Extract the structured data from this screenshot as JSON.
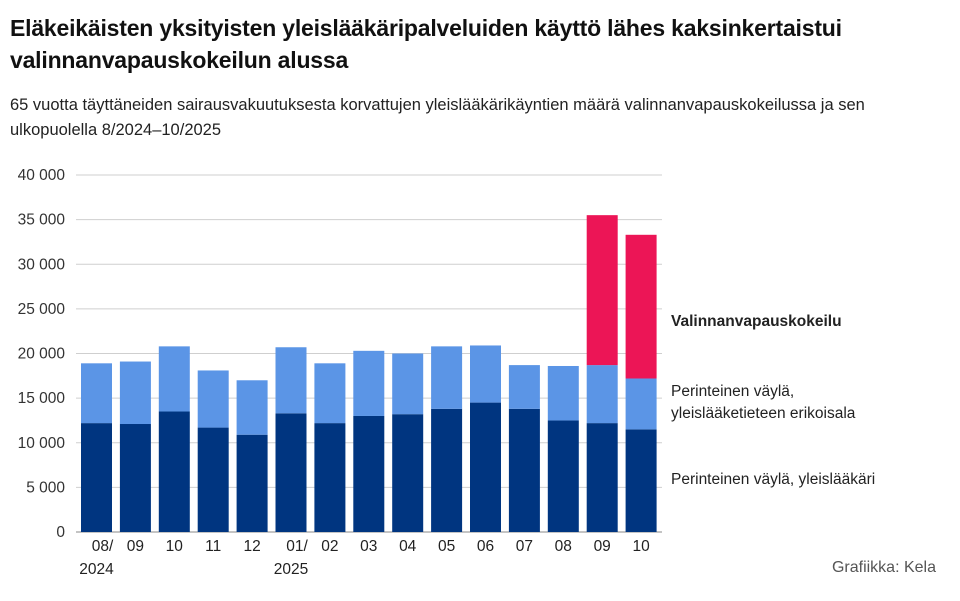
{
  "header": {
    "title": "Eläkeikäisten yksityisten yleislääkäripalveluiden käyttö lähes kaksinkertaistui valinnanvapauskokeilun alussa",
    "subtitle": "65 vuotta täyttäneiden sairausvakuutuksesta korvattujen yleislääkärikäyntien määrä valinnanvapauskokeilussa ja sen ulkopuolella 8/2024–10/2025"
  },
  "credit": "Grafiikka: Kela",
  "colors": {
    "dark_blue": "#003580",
    "light_blue": "#5b95e6",
    "pink": "#ec1556",
    "grid": "#cfcfcf"
  },
  "chart_data": {
    "type": "bar",
    "stacked": true,
    "categories": [
      "08/2024",
      "09",
      "10",
      "11",
      "12",
      "01/2025",
      "02",
      "03",
      "04",
      "05",
      "06",
      "07",
      "08",
      "09",
      "10"
    ],
    "tick_labels": [
      [
        "08/",
        "2024"
      ],
      [
        "09"
      ],
      [
        "10"
      ],
      [
        "11"
      ],
      [
        "12"
      ],
      [
        "01/",
        "2025"
      ],
      [
        "02"
      ],
      [
        "03"
      ],
      [
        "04"
      ],
      [
        "05"
      ],
      [
        "06"
      ],
      [
        "07"
      ],
      [
        "08"
      ],
      [
        "09"
      ],
      [
        "10"
      ]
    ],
    "ylim": [
      0,
      40000
    ],
    "yticks": [
      0,
      5000,
      10000,
      15000,
      20000,
      25000,
      30000,
      35000,
      40000
    ],
    "ytick_labels": [
      "0",
      "5 000",
      "10 000",
      "15 000",
      "20 000",
      "25 000",
      "30 000",
      "35 000",
      "40 000"
    ],
    "grid": true,
    "legend_placement": "right",
    "series": [
      {
        "name": "Perinteinen väylä, yleislääkäri",
        "legend_lines": [
          "Perinteinen väylä, yleislääkäri"
        ],
        "color": "#003580",
        "values": [
          12200,
          12100,
          13500,
          11700,
          10900,
          13300,
          12200,
          13000,
          13200,
          13800,
          14500,
          13800,
          12500,
          12200,
          11500
        ]
      },
      {
        "name": "Perinteinen väylä, yleislääketieteen erikoisala",
        "legend_lines": [
          "Perinteinen väylä,",
          "yleislääketieteen erikoisala"
        ],
        "color": "#5b95e6",
        "values": [
          6700,
          7000,
          7300,
          6400,
          6100,
          7400,
          6700,
          7300,
          6800,
          7000,
          6400,
          4900,
          6100,
          6500,
          5700
        ]
      },
      {
        "name": "Valinnanvapauskokeilu",
        "legend_lines": [
          "Valinnanvapauskokeilu"
        ],
        "color": "#ec1556",
        "values": [
          0,
          0,
          0,
          0,
          0,
          0,
          0,
          0,
          0,
          0,
          0,
          0,
          0,
          16800,
          16100
        ]
      }
    ]
  }
}
